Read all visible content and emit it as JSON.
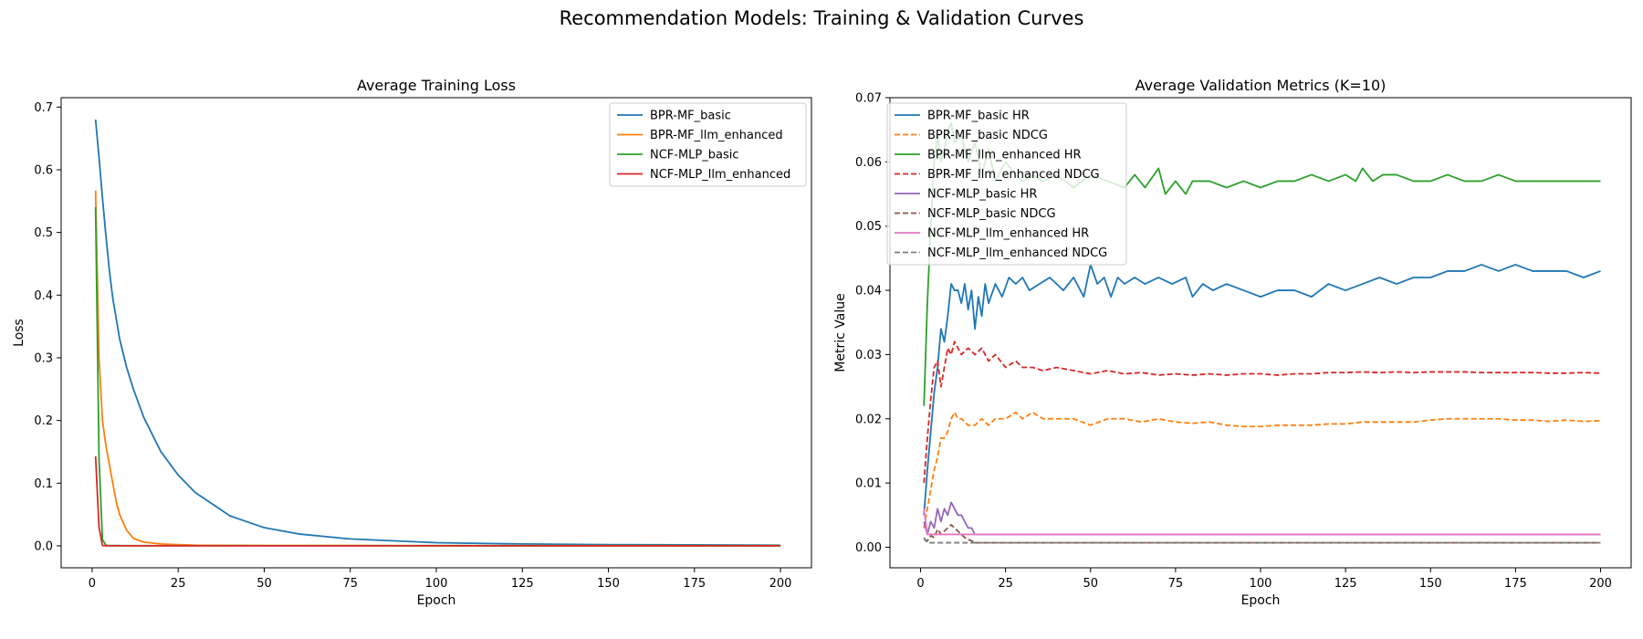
{
  "figure": {
    "title": "Recommendation Models: Training & Validation Curves"
  },
  "chart_data": [
    {
      "type": "line",
      "title": "Average Training Loss",
      "xlabel": "Epoch",
      "ylabel": "Loss",
      "xlim": [
        -9,
        209
      ],
      "ylim": [
        -0.035,
        0.715
      ],
      "xticks": [
        0,
        25,
        50,
        75,
        100,
        125,
        150,
        175,
        200
      ],
      "yticks": [
        0.0,
        0.1,
        0.2,
        0.3,
        0.4,
        0.5,
        0.6,
        0.7
      ],
      "ytick_labels": [
        "0.0",
        "0.1",
        "0.2",
        "0.3",
        "0.4",
        "0.5",
        "0.6",
        "0.7"
      ],
      "grid": false,
      "legend": "upper-right",
      "series": [
        {
          "name": "BPR-MF_basic",
          "color": "#1f77b4",
          "dash": "solid",
          "x": [
            1,
            2,
            3,
            4,
            5,
            6,
            8,
            10,
            12,
            15,
            20,
            25,
            30,
            40,
            50,
            60,
            75,
            100,
            125,
            150,
            175,
            200
          ],
          "y": [
            0.68,
            0.62,
            0.555,
            0.495,
            0.44,
            0.395,
            0.33,
            0.285,
            0.25,
            0.205,
            0.15,
            0.113,
            0.085,
            0.048,
            0.029,
            0.019,
            0.011,
            0.005,
            0.003,
            0.002,
            0.0015,
            0.001
          ]
        },
        {
          "name": "BPR-MF_llm_enhanced",
          "color": "#ff7f0e",
          "dash": "solid",
          "x": [
            1,
            2,
            3,
            4,
            5,
            6,
            7,
            8,
            10,
            12,
            15,
            20,
            25,
            30,
            50,
            100,
            200
          ],
          "y": [
            0.567,
            0.3,
            0.2,
            0.16,
            0.13,
            0.1,
            0.07,
            0.05,
            0.025,
            0.012,
            0.006,
            0.003,
            0.002,
            0.001,
            0.0005,
            0.0003,
            0.0002
          ]
        },
        {
          "name": "NCF-MLP_basic",
          "color": "#2ca02c",
          "dash": "solid",
          "x": [
            1,
            2,
            3,
            4,
            5,
            10,
            200
          ],
          "y": [
            0.54,
            0.14,
            0.01,
            0.001,
            0.0005,
            0.0003,
            0.0002
          ]
        },
        {
          "name": "NCF-MLP_llm_enhanced",
          "color": "#d62728",
          "dash": "solid",
          "x": [
            1,
            2,
            3,
            4,
            10,
            200
          ],
          "y": [
            0.143,
            0.03,
            0.0005,
            0.0002,
            0.0001,
            0.0001
          ]
        }
      ]
    },
    {
      "type": "line",
      "title": "Average Validation Metrics (K=10)",
      "xlabel": "Epoch",
      "ylabel": "Metric Value",
      "xlim": [
        -9,
        209
      ],
      "ylim": [
        -0.0032,
        0.07
      ],
      "xticks": [
        0,
        25,
        50,
        75,
        100,
        125,
        150,
        175,
        200
      ],
      "yticks": [
        0.0,
        0.01,
        0.02,
        0.03,
        0.04,
        0.05,
        0.06,
        0.07
      ],
      "ytick_labels": [
        "0.00",
        "0.01",
        "0.02",
        "0.03",
        "0.04",
        "0.05",
        "0.06",
        "0.07"
      ],
      "grid": false,
      "legend": "upper-left",
      "series": [
        {
          "name": "BPR-MF_basic HR",
          "color": "#1f77b4",
          "dash": "solid",
          "x": [
            1,
            2,
            3,
            4,
            5,
            6,
            7,
            8,
            9,
            10,
            11,
            12,
            13,
            14,
            15,
            16,
            17,
            18,
            19,
            20,
            22,
            24,
            26,
            28,
            30,
            32,
            35,
            38,
            40,
            42,
            45,
            48,
            50,
            52,
            54,
            56,
            58,
            60,
            63,
            66,
            70,
            74,
            78,
            80,
            83,
            86,
            90,
            95,
            100,
            105,
            110,
            115,
            120,
            125,
            130,
            135,
            140,
            145,
            150,
            155,
            160,
            165,
            170,
            175,
            180,
            185,
            190,
            195,
            200
          ],
          "y": [
            0.005,
            0.012,
            0.018,
            0.024,
            0.028,
            0.034,
            0.032,
            0.036,
            0.041,
            0.04,
            0.04,
            0.038,
            0.041,
            0.037,
            0.04,
            0.034,
            0.039,
            0.036,
            0.041,
            0.038,
            0.041,
            0.039,
            0.042,
            0.041,
            0.042,
            0.04,
            0.041,
            0.042,
            0.041,
            0.04,
            0.042,
            0.039,
            0.044,
            0.041,
            0.042,
            0.039,
            0.042,
            0.041,
            0.042,
            0.041,
            0.042,
            0.041,
            0.042,
            0.039,
            0.041,
            0.04,
            0.041,
            0.04,
            0.039,
            0.04,
            0.04,
            0.039,
            0.041,
            0.04,
            0.041,
            0.042,
            0.041,
            0.042,
            0.042,
            0.043,
            0.043,
            0.044,
            0.043,
            0.044,
            0.043,
            0.043,
            0.043,
            0.042,
            0.043
          ]
        },
        {
          "name": "BPR-MF_basic NDCG",
          "color": "#ff7f0e",
          "dash": "dashed",
          "x": [
            1,
            2,
            3,
            4,
            5,
            6,
            7,
            8,
            9,
            10,
            11,
            12,
            14,
            16,
            18,
            20,
            22,
            25,
            28,
            30,
            33,
            36,
            40,
            45,
            50,
            55,
            60,
            65,
            70,
            75,
            80,
            85,
            90,
            95,
            100,
            105,
            110,
            115,
            120,
            125,
            130,
            135,
            140,
            145,
            150,
            155,
            160,
            165,
            170,
            175,
            180,
            185,
            190,
            195,
            200
          ],
          "y": [
            0.003,
            0.006,
            0.009,
            0.012,
            0.014,
            0.017,
            0.017,
            0.018,
            0.02,
            0.021,
            0.02,
            0.02,
            0.019,
            0.019,
            0.02,
            0.019,
            0.02,
            0.02,
            0.021,
            0.02,
            0.021,
            0.02,
            0.02,
            0.02,
            0.019,
            0.02,
            0.02,
            0.0195,
            0.02,
            0.0195,
            0.0193,
            0.0195,
            0.019,
            0.0188,
            0.0188,
            0.019,
            0.019,
            0.019,
            0.0192,
            0.0192,
            0.0195,
            0.0195,
            0.0195,
            0.0195,
            0.0198,
            0.02,
            0.02,
            0.02,
            0.02,
            0.0198,
            0.0198,
            0.0196,
            0.0198,
            0.0196,
            0.0197
          ]
        },
        {
          "name": "BPR-MF_llm_enhanced HR",
          "color": "#2ca02c",
          "dash": "solid",
          "x": [
            1,
            2,
            3,
            4,
            5,
            6,
            7,
            8,
            9,
            10,
            12,
            14,
            16,
            18,
            20,
            22,
            25,
            28,
            30,
            33,
            36,
            40,
            45,
            50,
            55,
            60,
            63,
            66,
            70,
            72,
            75,
            78,
            80,
            85,
            90,
            95,
            100,
            105,
            110,
            115,
            120,
            125,
            128,
            130,
            133,
            136,
            140,
            145,
            150,
            155,
            160,
            165,
            170,
            175,
            180,
            185,
            190,
            195,
            200
          ],
          "y": [
            0.022,
            0.038,
            0.05,
            0.06,
            0.064,
            0.06,
            0.062,
            0.065,
            0.066,
            0.063,
            0.064,
            0.06,
            0.063,
            0.058,
            0.062,
            0.057,
            0.06,
            0.058,
            0.057,
            0.058,
            0.057,
            0.058,
            0.056,
            0.058,
            0.057,
            0.056,
            0.058,
            0.056,
            0.059,
            0.055,
            0.057,
            0.055,
            0.057,
            0.057,
            0.056,
            0.057,
            0.056,
            0.057,
            0.057,
            0.058,
            0.057,
            0.058,
            0.057,
            0.059,
            0.057,
            0.058,
            0.058,
            0.057,
            0.057,
            0.058,
            0.057,
            0.057,
            0.058,
            0.057,
            0.057,
            0.057,
            0.057,
            0.057,
            0.057
          ]
        },
        {
          "name": "BPR-MF_llm_enhanced NDCG",
          "color": "#d62728",
          "dash": "dashed",
          "x": [
            1,
            2,
            3,
            4,
            5,
            6,
            7,
            8,
            9,
            10,
            12,
            14,
            16,
            18,
            20,
            22,
            25,
            28,
            30,
            33,
            36,
            40,
            45,
            50,
            55,
            60,
            65,
            70,
            75,
            80,
            85,
            90,
            95,
            100,
            105,
            110,
            115,
            120,
            125,
            130,
            135,
            140,
            145,
            150,
            155,
            160,
            165,
            170,
            175,
            180,
            185,
            190,
            195,
            200
          ],
          "y": [
            0.01,
            0.017,
            0.023,
            0.028,
            0.029,
            0.025,
            0.028,
            0.031,
            0.03,
            0.032,
            0.03,
            0.031,
            0.03,
            0.031,
            0.029,
            0.03,
            0.028,
            0.029,
            0.028,
            0.028,
            0.0275,
            0.028,
            0.0275,
            0.027,
            0.0275,
            0.027,
            0.0272,
            0.0268,
            0.027,
            0.0268,
            0.027,
            0.0268,
            0.027,
            0.027,
            0.0268,
            0.027,
            0.027,
            0.0272,
            0.0272,
            0.0273,
            0.0272,
            0.0273,
            0.0272,
            0.0273,
            0.0273,
            0.0273,
            0.0272,
            0.0272,
            0.0272,
            0.0272,
            0.0271,
            0.0271,
            0.0272,
            0.0271
          ]
        },
        {
          "name": "NCF-MLP_basic HR",
          "color": "#9467bd",
          "dash": "solid",
          "x": [
            1,
            2,
            3,
            4,
            5,
            6,
            7,
            8,
            9,
            10,
            11,
            12,
            13,
            14,
            15,
            16,
            50,
            100,
            150,
            200
          ],
          "y": [
            0.004,
            0.002,
            0.004,
            0.003,
            0.006,
            0.004,
            0.006,
            0.005,
            0.007,
            0.006,
            0.005,
            0.005,
            0.004,
            0.003,
            0.003,
            0.002,
            0.002,
            0.002,
            0.002,
            0.002
          ]
        },
        {
          "name": "NCF-MLP_basic NDCG",
          "color": "#8c564b",
          "dash": "dashed",
          "x": [
            1,
            2,
            3,
            4,
            5,
            6,
            7,
            8,
            9,
            10,
            11,
            12,
            13,
            14,
            15,
            16,
            50,
            100,
            150,
            200
          ],
          "y": [
            0.0012,
            0.001,
            0.0018,
            0.0015,
            0.0028,
            0.002,
            0.0025,
            0.003,
            0.0035,
            0.003,
            0.0025,
            0.002,
            0.0015,
            0.0012,
            0.001,
            0.0007,
            0.0007,
            0.0007,
            0.0007,
            0.0007
          ]
        },
        {
          "name": "NCF-MLP_llm_enhanced HR",
          "color": "#e377c2",
          "dash": "solid",
          "x": [
            1,
            2,
            3,
            4,
            5,
            10,
            50,
            100,
            150,
            200
          ],
          "y": [
            0.006,
            0.002,
            0.002,
            0.002,
            0.002,
            0.002,
            0.002,
            0.002,
            0.002,
            0.002
          ]
        },
        {
          "name": "NCF-MLP_llm_enhanced NDCG",
          "color": "#7f7f7f",
          "dash": "dashed",
          "x": [
            1,
            2,
            3,
            4,
            5,
            10,
            50,
            100,
            150,
            200
          ],
          "y": [
            0.0015,
            0.0007,
            0.0007,
            0.0007,
            0.0007,
            0.0007,
            0.0007,
            0.0007,
            0.0007,
            0.0007
          ]
        }
      ]
    }
  ]
}
